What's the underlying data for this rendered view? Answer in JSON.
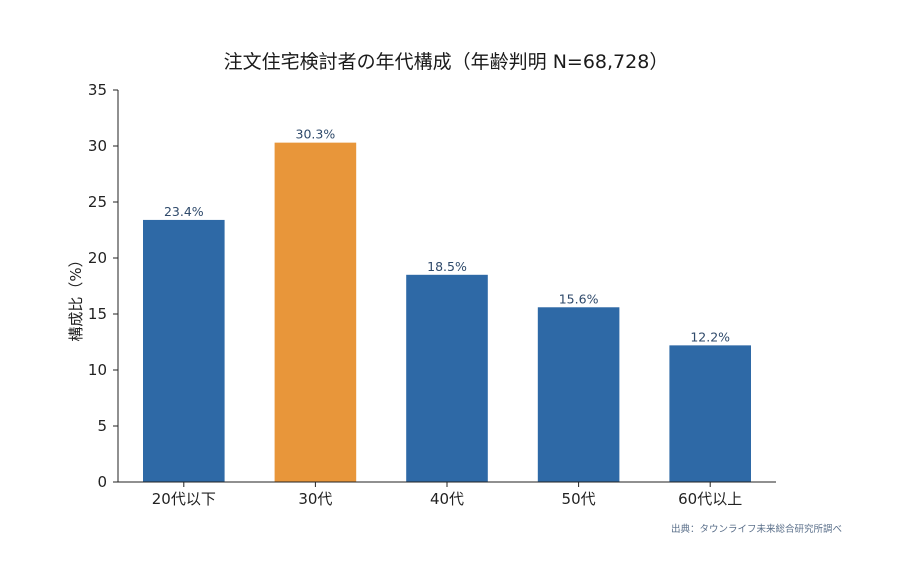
{
  "chart_data": {
    "type": "bar",
    "title": "注文住宅検討者の年代構成（年齢判明 N=68,728）",
    "xlabel": "",
    "ylabel": "構成比（%）",
    "categories": [
      "20代以下",
      "30代",
      "40代",
      "50代",
      "60代以上"
    ],
    "values": [
      23.4,
      30.3,
      18.5,
      15.6,
      12.2
    ],
    "data_labels": [
      "23.4%",
      "30.3%",
      "18.5%",
      "15.6%",
      "12.2%"
    ],
    "highlight_category": "30代",
    "ylim": [
      0,
      35
    ],
    "yticks": [
      0,
      5,
      10,
      15,
      20,
      25,
      30,
      35
    ],
    "grid": false,
    "colors": {
      "bar": "#2e69a6",
      "highlight": "#e8963a",
      "axis": "#222222"
    }
  },
  "source_note": "出典：タウンライフ未来総合研究所調べ"
}
